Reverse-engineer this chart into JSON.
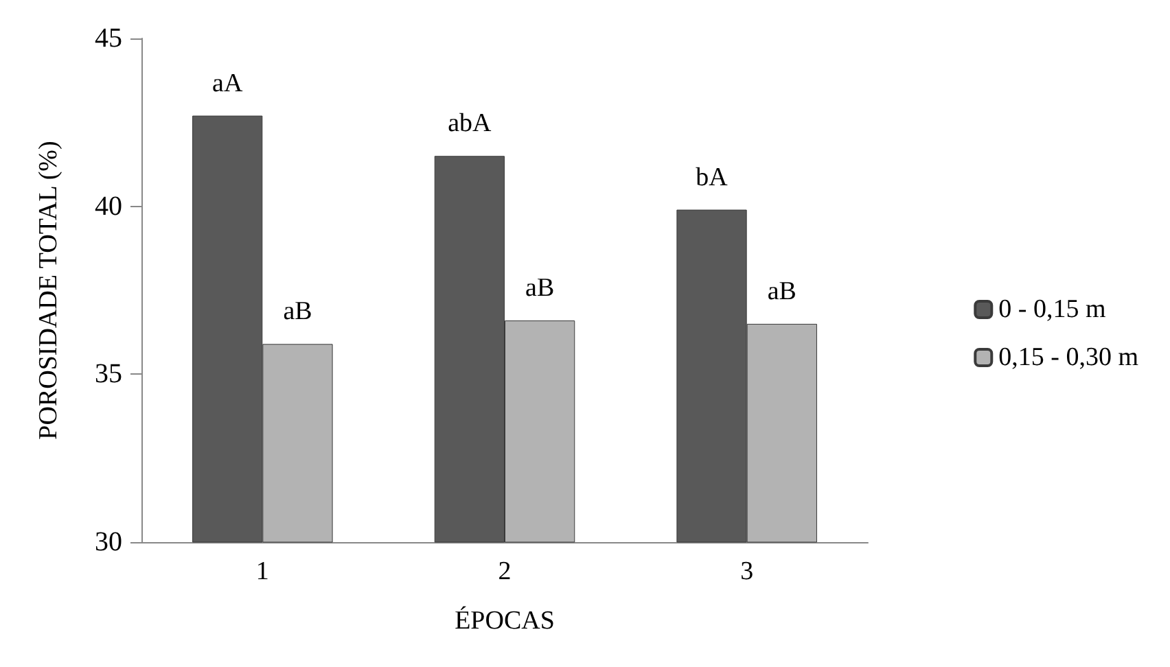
{
  "chart_data": {
    "type": "bar",
    "xlabel": "ÉPOCAS",
    "ylabel": "POROSIDADE TOTAL (%)",
    "categories": [
      "1",
      "2",
      "3"
    ],
    "series": [
      {
        "name": "0 - 0,15 m",
        "color": "#595959",
        "values": [
          42.7,
          41.5,
          39.9
        ]
      },
      {
        "name": "0,15 - 0,30 m",
        "color": "#b3b3b3",
        "values": [
          35.9,
          36.6,
          36.5
        ]
      }
    ],
    "ylim": [
      30,
      45
    ],
    "yticks": [
      30,
      35,
      40,
      45
    ],
    "grid": false,
    "legend": "right",
    "annotations": [
      {
        "text": "aA",
        "x": "1",
        "y": 42.7
      },
      {
        "text": "abA",
        "x": "2",
        "y": 41.5
      },
      {
        "text": "bA",
        "x": "3",
        "y": 39.9
      },
      {
        "text": "aB",
        "x": "1",
        "y": 35.9
      },
      {
        "text": "aB",
        "x": "2",
        "y": 36.6
      },
      {
        "text": "aB",
        "x": "3",
        "y": 36.5
      }
    ]
  }
}
